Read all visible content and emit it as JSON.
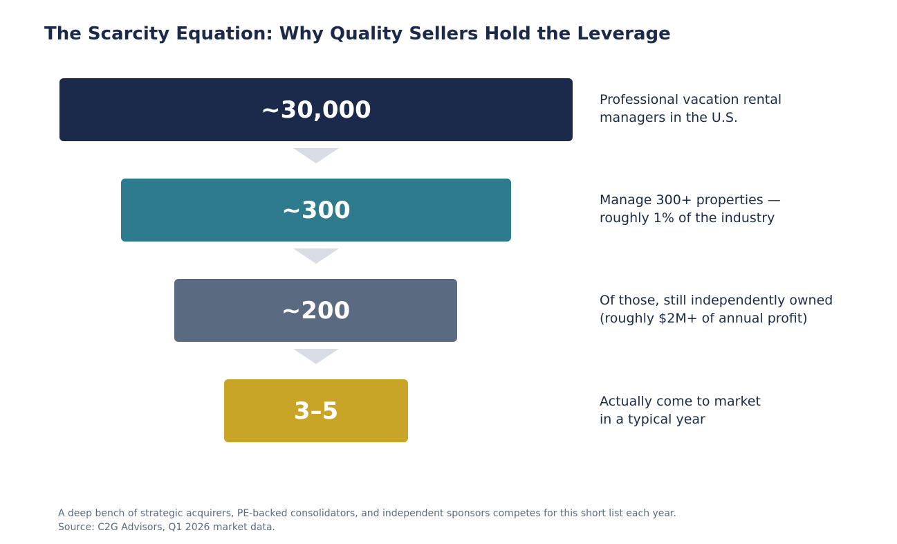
{
  "title": "The Scarcity Equation: Why Quality Sellers Hold the Leverage",
  "funnel": [
    {
      "value": "~30,000",
      "color": "#1b2a4a",
      "desc_line1": "Professional vacation rental",
      "desc_line2": "managers in the U.S."
    },
    {
      "value": "~300",
      "color": "#2e7b8d",
      "desc_line1": "Manage 300+ properties —",
      "desc_line2": "roughly 1% of the industry"
    },
    {
      "value": "~200",
      "color": "#5a6a80",
      "desc_line1": "Of those, still independently owned",
      "desc_line2": "(roughly $2M+ of annual profit)"
    },
    {
      "value": "3–5",
      "color": "#c9a527",
      "desc_line1": "Actually come to market",
      "desc_line2": "in a typical year"
    }
  ],
  "footer": {
    "note": "A deep bench of strategic acquirers, PE-backed consolidators, and independent sponsors competes for this short list each year.",
    "source": "Source: C2G Advisors, Q1 2026 market data."
  }
}
